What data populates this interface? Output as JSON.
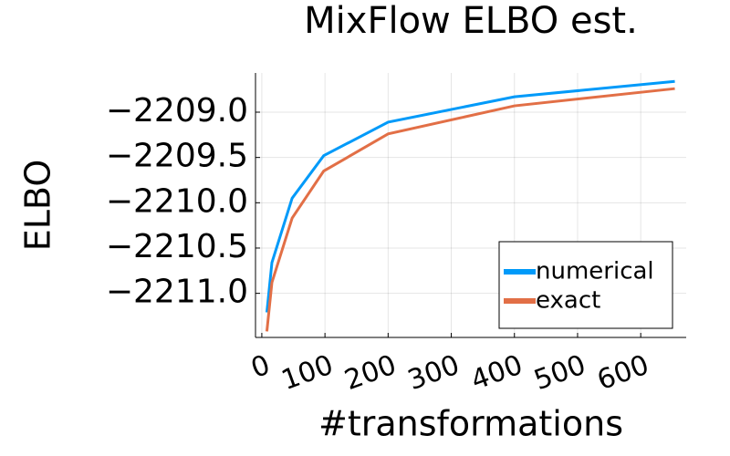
{
  "chart_data": {
    "type": "line",
    "title": "MixFlow ELBO est.",
    "x_label": "#transformations",
    "y_label": "ELBO",
    "x": [
      8,
      16,
      48,
      98,
      200,
      400,
      654
    ],
    "series": [
      {
        "name": "numerical",
        "color": "#009af9",
        "values": [
          -2211.21,
          -2210.66,
          -2209.95,
          -2209.48,
          -2209.11,
          -2208.83,
          -2208.66
        ]
      },
      {
        "name": "exact",
        "color": "#e26f46",
        "values": [
          -2211.42,
          -2210.88,
          -2210.17,
          -2209.65,
          -2209.24,
          -2208.93,
          -2208.74
        ]
      }
    ],
    "xlim": [
      -10,
      672
    ],
    "xticks": [
      0,
      100,
      200,
      300,
      400,
      500,
      600
    ],
    "ylim": [
      -2211.487,
      -2208.567
    ],
    "yticks": [
      {
        "value": -2211.0,
        "label": "−2211.0"
      },
      {
        "value": -2210.5,
        "label": "−2210.5"
      },
      {
        "value": -2210.0,
        "label": "−2210.0"
      },
      {
        "value": -2209.5,
        "label": "−2209.5"
      },
      {
        "value": -2209.0,
        "label": "−2209.0"
      }
    ],
    "grid": true,
    "legend": "bottom-right"
  }
}
